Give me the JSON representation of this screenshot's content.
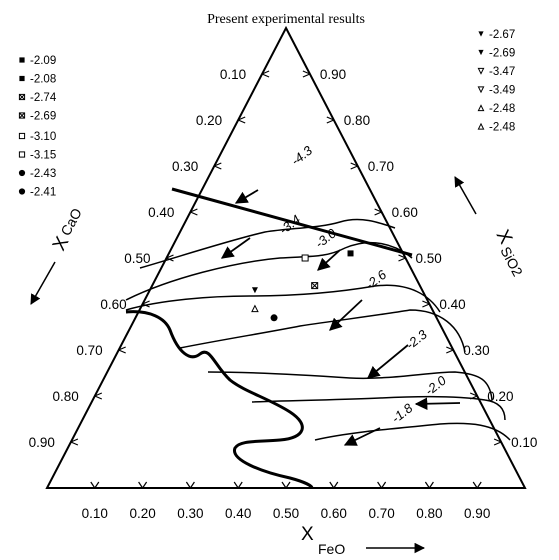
{
  "chart_data": {
    "type": "ternary",
    "title": "Present experimental results",
    "axes": {
      "bottom": {
        "label_x": "X",
        "label_sub": "FeO"
      },
      "left": {
        "label_x": "X",
        "label_sub": "CaO"
      },
      "right": {
        "label_x": "X",
        "label_sub": "SiO2"
      },
      "ticks": [
        "0.10",
        "0.20",
        "0.30",
        "0.40",
        "0.50",
        "0.60",
        "0.70",
        "0.80",
        "0.90"
      ]
    },
    "isoactivity_lines": [
      {
        "label": "-4.3",
        "fe_start": 0.04,
        "fe_end": 0.5,
        "fe_label": 0.17,
        "si_label": 0.7
      },
      {
        "label": "-3.4",
        "fe_start": 0.05,
        "fe_end": 0.52,
        "fe_label": 0.22,
        "si_label": 0.55
      },
      {
        "label": "-3.0",
        "fe_start": 0.09,
        "fe_end": 0.56,
        "fe_label": 0.31,
        "si_label": 0.52
      },
      {
        "label": "-2.6",
        "fe_start": 0.17,
        "fe_end": 0.66,
        "fe_label": 0.46,
        "si_label": 0.43
      },
      {
        "label": "-2.3",
        "fe_start": 0.27,
        "fe_end": 0.72,
        "fe_label": 0.61,
        "si_label": 0.3
      },
      {
        "label": "-2.0",
        "fe_start": 0.33,
        "fe_end": 0.78,
        "fe_label": 0.7,
        "si_label": 0.2
      },
      {
        "label": "-1.8",
        "fe_start": 0.4,
        "fe_end": 0.85,
        "fe_label": 0.66,
        "si_label": 0.14
      }
    ],
    "legend": [
      {
        "marker": "filled-square",
        "value": "-2.09"
      },
      {
        "marker": "filled-square",
        "value": "-2.08"
      },
      {
        "marker": "boxed-x",
        "value": "-2.74"
      },
      {
        "marker": "boxed-x",
        "value": "-2.69"
      },
      {
        "marker": "open-square",
        "value": "-3.10"
      },
      {
        "marker": "open-square",
        "value": "-3.15"
      },
      {
        "marker": "filled-circle",
        "value": "-2.43"
      },
      {
        "marker": "filled-circle",
        "value": "-2.41"
      },
      {
        "marker": "filled-triangle-down",
        "value": "-2.67"
      },
      {
        "marker": "filled-triangle-down",
        "value": "-2.69"
      },
      {
        "marker": "open-triangle-down",
        "value": "-3.47"
      },
      {
        "marker": "open-triangle-down",
        "value": "-3.49"
      },
      {
        "marker": "open-triangle-up",
        "value": "-2.48"
      },
      {
        "marker": "open-triangle-up",
        "value": "-2.48"
      }
    ],
    "points": [
      {
        "marker": "filled-square",
        "fe": 0.38,
        "si": 0.51
      },
      {
        "marker": "open-square",
        "fe": 0.29,
        "si": 0.5
      },
      {
        "marker": "boxed-x",
        "fe": 0.34,
        "si": 0.44
      },
      {
        "marker": "filled-triangle-down",
        "fe": 0.22,
        "si": 0.43
      },
      {
        "marker": "open-triangle-up",
        "fe": 0.24,
        "si": 0.39
      },
      {
        "marker": "filled-circle",
        "fe": 0.29,
        "si": 0.37
      }
    ]
  }
}
